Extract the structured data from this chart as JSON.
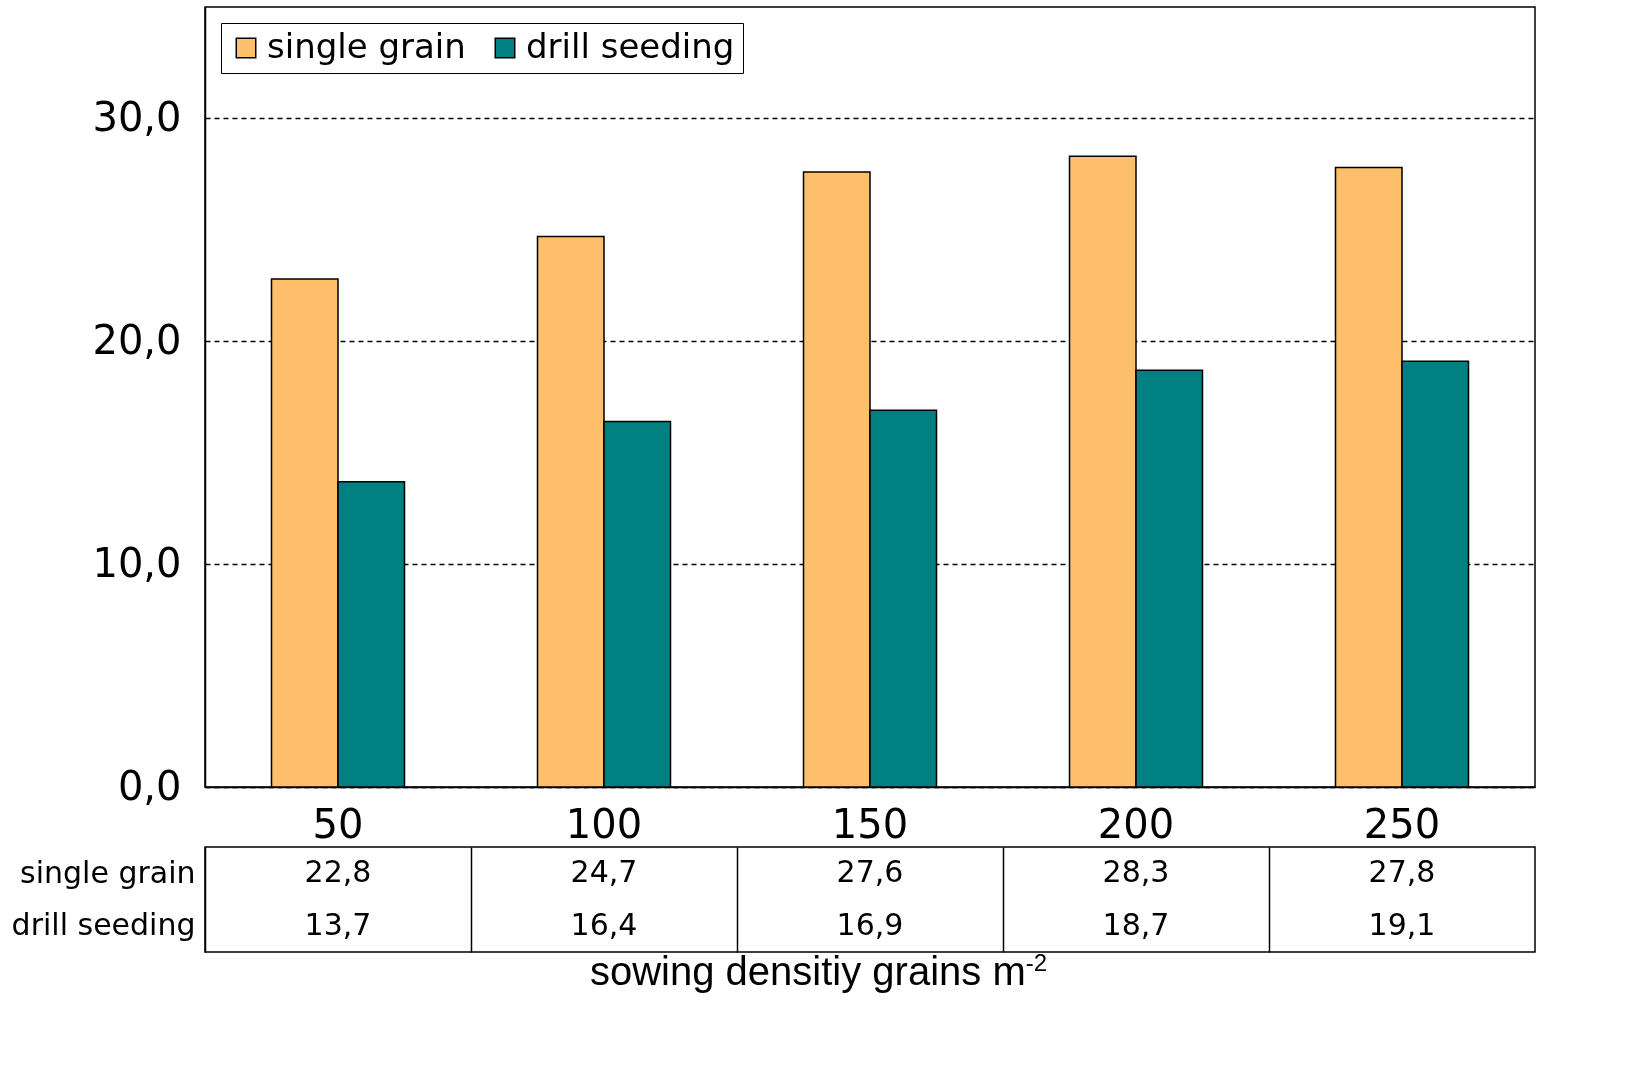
{
  "chart_data": {
    "type": "bar",
    "xlabel": "sowing densitiy grains m$^{-2}$",
    "categories": [
      "50",
      "100",
      "150",
      "200",
      "250"
    ],
    "series": [
      {
        "name": "single grain",
        "color": "#fdbf6a",
        "values": [
          22.8,
          24.7,
          27.6,
          28.3,
          27.8
        ],
        "value_labels": [
          "22,8",
          "24,7",
          "27,6",
          "28,3",
          "27,8"
        ]
      },
      {
        "name": "drill seeding",
        "color": "#008080",
        "values": [
          13.7,
          16.4,
          16.9,
          18.7,
          19.1
        ],
        "value_labels": [
          "13,7",
          "16,4",
          "16,9",
          "18,7",
          "19,1"
        ]
      }
    ],
    "ylim": [
      0,
      35
    ],
    "yticks": [
      {
        "value": 0,
        "label": "0,0"
      },
      {
        "value": 10,
        "label": "10,0"
      },
      {
        "value": 20,
        "label": "20,0"
      },
      {
        "value": 30,
        "label": "30,0"
      }
    ],
    "grid": "y",
    "legend": "top left"
  }
}
